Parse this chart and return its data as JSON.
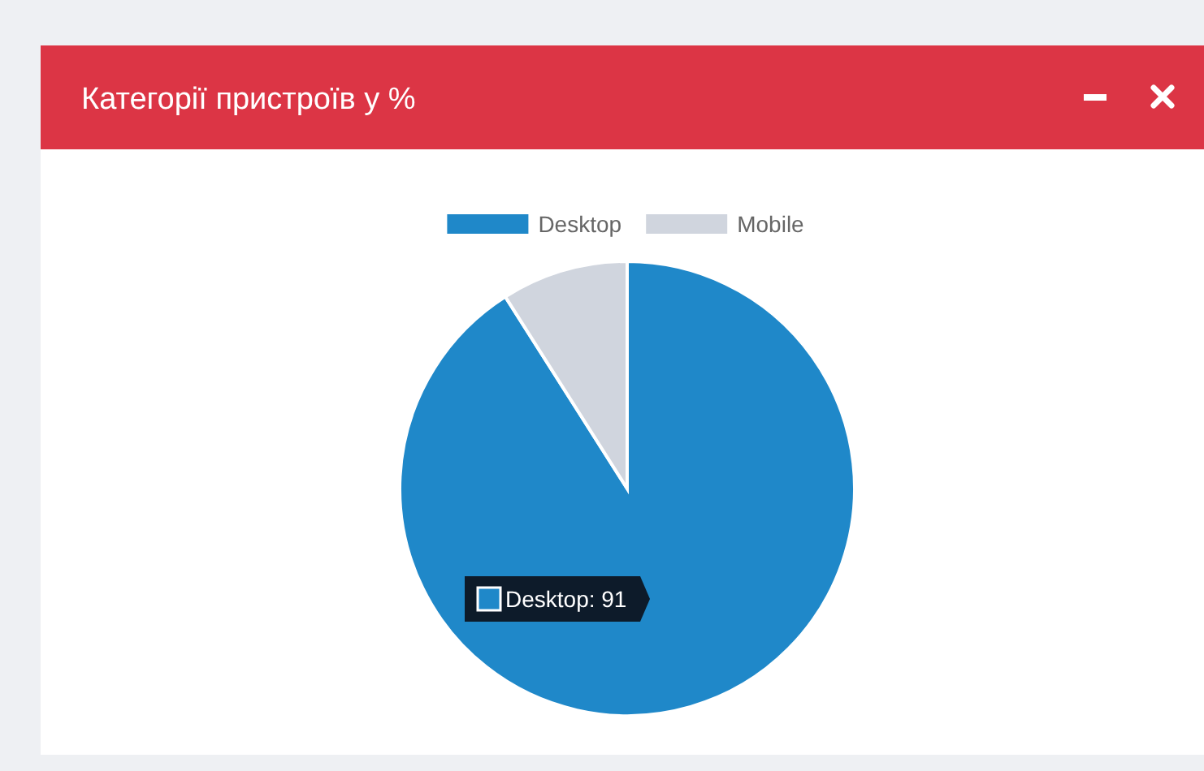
{
  "chart_data": {
    "type": "pie",
    "title": "Категорії пристроїв у %",
    "categories": [
      "Desktop",
      "Mobile"
    ],
    "values": [
      91,
      9
    ],
    "colors": [
      "#1f88c9",
      "#d0d5de"
    ],
    "legend": "top",
    "value_labels": [
      "Desktop: 91",
      null
    ]
  }
}
